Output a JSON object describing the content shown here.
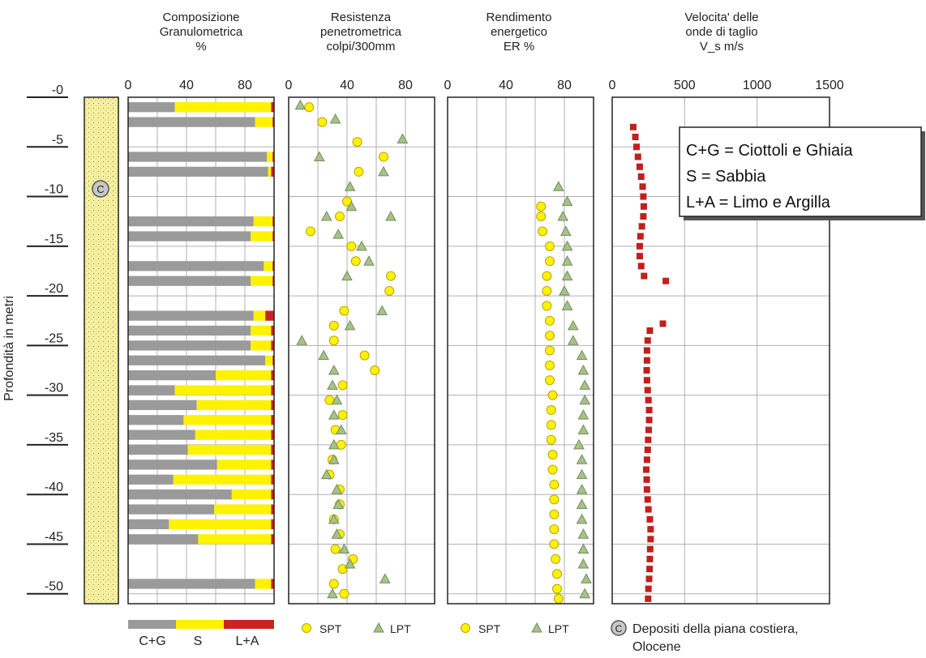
{
  "colors": {
    "cg": "#9a9a9a",
    "s": "#fff200",
    "la": "#cc2222",
    "sand": "#f5f0a0",
    "spt_fill": "#fff200",
    "spt_stroke": "#b8a400",
    "lpt_fill": "#a9c089",
    "lpt_stroke": "#6f8f5a",
    "vs": "#c0201c",
    "grid": "#b0b0b0"
  },
  "depth_axis": {
    "label": "Profondità in metri",
    "ticks": [
      "-0",
      "-5",
      "-10",
      "-15",
      "-20",
      "-25",
      "-30",
      "-35",
      "-40",
      "-45",
      "-50"
    ]
  },
  "lithology": {
    "symbol": "C",
    "legend_line1": "Depositi della piana costiera,",
    "legend_line2": "Olocene"
  },
  "chart_data": [
    {
      "type": "bar",
      "title": [
        "Composizione",
        "Granulometrica",
        "%"
      ],
      "xlim": [
        0,
        100
      ],
      "xticks": [
        "0",
        "40",
        "80"
      ],
      "legend": [
        "C+G",
        "S",
        "L+A"
      ],
      "layers": [
        {
          "top": 0.5,
          "bottom": 1.5,
          "cg": 32,
          "s": 66,
          "la": 2
        },
        {
          "top": 2,
          "bottom": 3,
          "cg": 87,
          "s": 12,
          "la": 1
        },
        {
          "top": 5.5,
          "bottom": 6.5,
          "cg": 95,
          "s": 4,
          "la": 1
        },
        {
          "top": 7,
          "bottom": 8,
          "cg": 96,
          "s": 2,
          "la": 2
        },
        {
          "top": 12,
          "bottom": 13,
          "cg": 86,
          "s": 13,
          "la": 1
        },
        {
          "top": 13.5,
          "bottom": 14.5,
          "cg": 84,
          "s": 15,
          "la": 1
        },
        {
          "top": 16.5,
          "bottom": 17.5,
          "cg": 93,
          "s": 6,
          "la": 1
        },
        {
          "top": 18,
          "bottom": 19,
          "cg": 84,
          "s": 15,
          "la": 1
        },
        {
          "top": 21.5,
          "bottom": 22.5,
          "cg": 86,
          "s": 8,
          "la": 6
        },
        {
          "top": 23,
          "bottom": 24,
          "cg": 84,
          "s": 14,
          "la": 2
        },
        {
          "top": 24.5,
          "bottom": 25.5,
          "cg": 84,
          "s": 14,
          "la": 2
        },
        {
          "top": 26,
          "bottom": 27,
          "cg": 94,
          "s": 5,
          "la": 1
        },
        {
          "top": 27.5,
          "bottom": 28.5,
          "cg": 60,
          "s": 38,
          "la": 2
        },
        {
          "top": 29,
          "bottom": 30,
          "cg": 32,
          "s": 66,
          "la": 2
        },
        {
          "top": 30.5,
          "bottom": 31.5,
          "cg": 47,
          "s": 51,
          "la": 2
        },
        {
          "top": 32,
          "bottom": 33,
          "cg": 38,
          "s": 60,
          "la": 2
        },
        {
          "top": 33.5,
          "bottom": 34.5,
          "cg": 46,
          "s": 52,
          "la": 2
        },
        {
          "top": 35,
          "bottom": 36,
          "cg": 41,
          "s": 57,
          "la": 2
        },
        {
          "top": 36.5,
          "bottom": 37.5,
          "cg": 61,
          "s": 37,
          "la": 2
        },
        {
          "top": 38,
          "bottom": 39,
          "cg": 31,
          "s": 67,
          "la": 2
        },
        {
          "top": 39.5,
          "bottom": 40.5,
          "cg": 71,
          "s": 27,
          "la": 2
        },
        {
          "top": 41,
          "bottom": 42,
          "cg": 59,
          "s": 39,
          "la": 2
        },
        {
          "top": 42.5,
          "bottom": 43.5,
          "cg": 28,
          "s": 70,
          "la": 2
        },
        {
          "top": 44,
          "bottom": 45,
          "cg": 48,
          "s": 50,
          "la": 2
        },
        {
          "top": 48.5,
          "bottom": 49.5,
          "cg": 87,
          "s": 11,
          "la": 2
        }
      ]
    },
    {
      "type": "scatter",
      "title": [
        "Resistenza",
        "penetrometrica",
        "colpi/300mm"
      ],
      "xlim": [
        0,
        100
      ],
      "xticks": [
        "0",
        "40",
        "80"
      ],
      "legend": [
        "SPT",
        "LPT"
      ],
      "series": [
        {
          "name": "SPT",
          "points": [
            [
              14,
              1
            ],
            [
              23,
              2.5
            ],
            [
              47,
              4.5
            ],
            [
              65,
              6
            ],
            [
              48,
              7.5
            ],
            [
              40,
              10.5
            ],
            [
              35,
              12
            ],
            [
              15,
              13.5
            ],
            [
              43,
              15
            ],
            [
              46,
              16.5
            ],
            [
              70,
              18
            ],
            [
              69,
              19.5
            ],
            [
              38,
              21.5
            ],
            [
              31,
              23
            ],
            [
              31,
              24.5
            ],
            [
              52,
              26
            ],
            [
              59,
              27.5
            ],
            [
              37,
              29
            ],
            [
              28,
              30.5
            ],
            [
              37,
              32
            ],
            [
              32,
              33.5
            ],
            [
              36,
              35
            ],
            [
              30,
              36.5
            ],
            [
              28,
              38
            ],
            [
              35,
              39.5
            ],
            [
              35,
              41
            ],
            [
              31,
              42.5
            ],
            [
              35,
              44
            ],
            [
              32,
              45.5
            ],
            [
              44,
              46.5
            ],
            [
              37,
              47.5
            ],
            [
              31,
              49
            ],
            [
              38,
              50
            ]
          ]
        },
        {
          "name": "LPT",
          "points": [
            [
              8,
              0.8
            ],
            [
              32,
              2.2
            ],
            [
              78,
              4.2
            ],
            [
              21,
              6
            ],
            [
              65,
              7.5
            ],
            [
              42,
              9
            ],
            [
              43,
              11
            ],
            [
              26,
              12
            ],
            [
              70,
              12
            ],
            [
              34,
              13.8
            ],
            [
              50,
              15
            ],
            [
              55,
              16.5
            ],
            [
              40,
              18
            ],
            [
              64,
              21.5
            ],
            [
              42,
              23
            ],
            [
              9,
              24.5
            ],
            [
              24,
              26
            ],
            [
              31,
              27.5
            ],
            [
              30,
              29
            ],
            [
              33,
              30.5
            ],
            [
              31,
              32
            ],
            [
              36,
              33.5
            ],
            [
              31,
              35
            ],
            [
              31,
              36.5
            ],
            [
              26,
              38
            ],
            [
              33,
              39.5
            ],
            [
              34,
              41
            ],
            [
              31,
              42.5
            ],
            [
              33,
              44
            ],
            [
              38,
              45.5
            ],
            [
              42,
              47
            ],
            [
              66,
              48.5
            ],
            [
              30,
              50
            ]
          ]
        }
      ]
    },
    {
      "type": "scatter",
      "title": [
        "Rendimento",
        "energetico",
        "ER %"
      ],
      "xlim": [
        0,
        100
      ],
      "xticks": [
        "0",
        "40",
        "80"
      ],
      "legend": [
        "SPT",
        "LPT"
      ],
      "series": [
        {
          "name": "SPT",
          "points": [
            [
              64,
              11
            ],
            [
              64,
              12
            ],
            [
              65,
              13.5
            ],
            [
              70,
              15
            ],
            [
              70,
              16.5
            ],
            [
              68,
              18
            ],
            [
              68,
              19.5
            ],
            [
              68,
              21
            ],
            [
              70,
              22.5
            ],
            [
              70,
              24
            ],
            [
              70,
              25.5
            ],
            [
              70,
              27
            ],
            [
              70,
              28.5
            ],
            [
              72,
              30
            ],
            [
              71,
              31.5
            ],
            [
              71,
              33
            ],
            [
              71,
              34.5
            ],
            [
              72,
              36
            ],
            [
              72,
              37.5
            ],
            [
              73,
              39
            ],
            [
              73,
              40.5
            ],
            [
              73,
              42
            ],
            [
              73,
              43.5
            ],
            [
              73,
              45
            ],
            [
              74,
              46.5
            ],
            [
              75,
              48
            ],
            [
              75,
              49.5
            ],
            [
              76,
              50.5
            ]
          ]
        },
        {
          "name": "LPT",
          "points": [
            [
              76,
              9
            ],
            [
              82,
              10.5
            ],
            [
              79,
              12
            ],
            [
              81,
              13.5
            ],
            [
              82,
              15
            ],
            [
              82,
              16.5
            ],
            [
              82,
              18
            ],
            [
              80,
              19.5
            ],
            [
              82,
              21
            ],
            [
              86,
              23
            ],
            [
              86,
              24.5
            ],
            [
              92,
              26
            ],
            [
              93,
              27.5
            ],
            [
              94,
              29
            ],
            [
              94,
              30.5
            ],
            [
              93,
              32
            ],
            [
              93,
              33.5
            ],
            [
              90,
              35
            ],
            [
              92,
              36.5
            ],
            [
              92,
              38
            ],
            [
              92,
              39.5
            ],
            [
              92,
              41
            ],
            [
              92,
              42.5
            ],
            [
              93,
              44
            ],
            [
              93,
              45.5
            ],
            [
              93,
              47
            ],
            [
              95,
              48.5
            ],
            [
              94,
              50
            ]
          ]
        }
      ]
    },
    {
      "type": "scatter",
      "title": [
        "Velocita' delle",
        "onde di taglio",
        "V_s m/s"
      ],
      "xlim": [
        0,
        1500
      ],
      "xticks": [
        "0",
        "500",
        "1000",
        "1500"
      ],
      "legend": [
        "C+G = Ciottoli e Ghiaia",
        "S = Sabbia",
        "L+A = Limo e Argilla"
      ],
      "series": [
        {
          "name": "Vs",
          "points": [
            [
              145,
              3
            ],
            [
              160,
              4
            ],
            [
              168,
              5
            ],
            [
              178,
              6
            ],
            [
              190,
              7
            ],
            [
              200,
              8
            ],
            [
              210,
              9
            ],
            [
              215,
              10
            ],
            [
              218,
              11
            ],
            [
              215,
              12
            ],
            [
              205,
              13
            ],
            [
              195,
              14
            ],
            [
              190,
              15
            ],
            [
              190,
              16
            ],
            [
              200,
              17
            ],
            [
              220,
              18
            ],
            [
              370,
              18.5
            ],
            [
              350,
              22.8
            ],
            [
              260,
              23.5
            ],
            [
              245,
              24.5
            ],
            [
              240,
              25.5
            ],
            [
              240,
              26.5
            ],
            [
              238,
              27.5
            ],
            [
              240,
              28.5
            ],
            [
              245,
              29.5
            ],
            [
              250,
              30.5
            ],
            [
              255,
              31.5
            ],
            [
              255,
              32.5
            ],
            [
              252,
              33.5
            ],
            [
              248,
              34.5
            ],
            [
              245,
              35.5
            ],
            [
              240,
              36.5
            ],
            [
              235,
              37.5
            ],
            [
              238,
              38.5
            ],
            [
              240,
              39.5
            ],
            [
              245,
              40.5
            ],
            [
              250,
              41.5
            ],
            [
              260,
              42.5
            ],
            [
              265,
              43.5
            ],
            [
              265,
              44.5
            ],
            [
              262,
              45.5
            ],
            [
              260,
              46.5
            ],
            [
              258,
              47.5
            ],
            [
              255,
              48.5
            ],
            [
              250,
              49.5
            ],
            [
              248,
              50.5
            ]
          ]
        }
      ]
    }
  ]
}
